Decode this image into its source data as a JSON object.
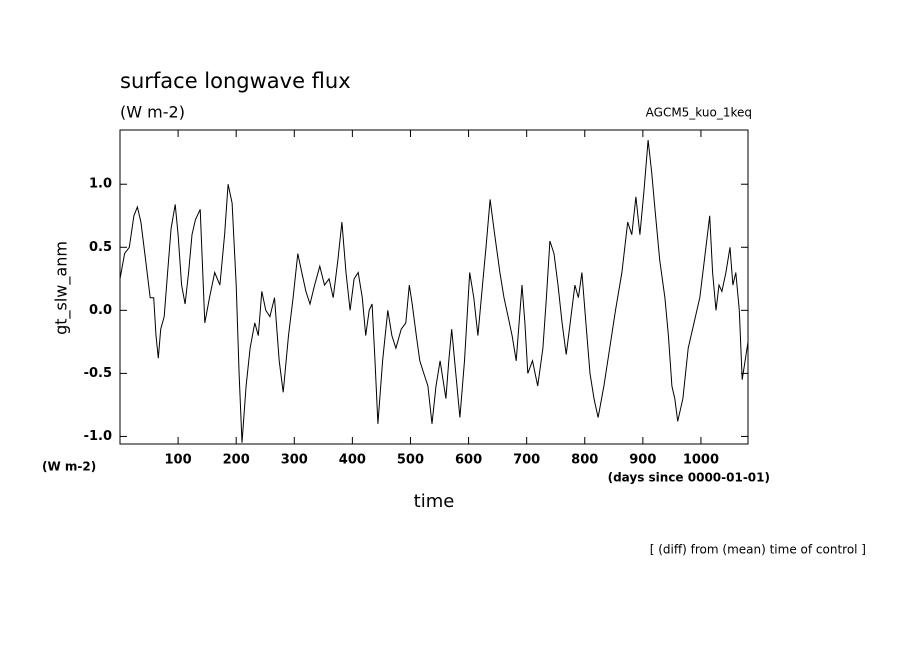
{
  "chart_data": {
    "type": "line",
    "title": "surface longwave flux",
    "subtitle": "(W m-2)",
    "annotation": "AGCM5_kuo_1keq",
    "y_label": "gt_slw_anm",
    "y_units": "(W m-2)",
    "x_units": "(days since 0000-01-01)",
    "x_label": "time",
    "footnote": "[ (diff) from (mean) time of control ]",
    "xlim": [
      0,
      1081
    ],
    "ylim": [
      -1.06,
      1.43
    ],
    "xticks": [
      100,
      200,
      300,
      400,
      500,
      600,
      700,
      800,
      900,
      1000
    ],
    "yticks": [
      {
        "value": -1.0,
        "label": "-1.0"
      },
      -0.5,
      {
        "value": 0.0,
        "label": "0.0"
      },
      0.5,
      {
        "value": 1.0,
        "label": "1.0"
      }
    ],
    "series": [
      {
        "color": "#000000",
        "x": [
          0,
          8,
          16,
          24,
          30,
          36,
          44,
          52,
          58,
          62,
          66,
          70,
          76,
          82,
          88,
          95,
          100,
          106,
          112,
          118,
          124,
          130,
          138,
          146,
          154,
          163,
          172,
          180,
          186,
          193,
          200,
          205,
          210,
          217,
          224,
          232,
          238,
          244,
          251,
          258,
          266,
          274,
          281,
          290,
          298,
          306,
          313,
          320,
          327,
          335,
          344,
          352,
          360,
          367,
          375,
          382,
          389,
          396,
          403,
          410,
          417,
          423,
          429,
          434,
          439,
          444,
          452,
          461,
          468,
          475,
          484,
          492,
          498,
          503,
          510,
          516,
          523,
          530,
          537,
          544,
          551,
          556,
          561,
          566,
          571,
          578,
          585,
          593,
          602,
          609,
          616,
          624,
          630,
          637,
          645,
          654,
          661,
          668,
          675,
          682,
          687,
          692,
          697,
          702,
          710,
          719,
          728,
          734,
          740,
          747,
          754,
          761,
          768,
          775,
          783,
          789,
          795,
          802,
          809,
          816,
          823,
          833,
          843,
          853,
          864,
          869,
          874,
          881,
          888,
          895,
          902,
          909,
          915,
          921,
          929,
          938,
          944,
          950,
          955,
          960,
          969,
          978,
          988,
          998,
          1006,
          1015,
          1020,
          1026,
          1031,
          1036,
          1043,
          1050,
          1055,
          1060,
          1066,
          1071,
          1076,
          1081
        ],
        "values": [
          0.25,
          0.45,
          0.5,
          0.75,
          0.82,
          0.7,
          0.4,
          0.1,
          0.1,
          -0.2,
          -0.38,
          -0.15,
          -0.05,
          0.3,
          0.65,
          0.84,
          0.6,
          0.2,
          0.05,
          0.3,
          0.6,
          0.72,
          0.8,
          -0.1,
          0.1,
          0.3,
          0.2,
          0.6,
          1.0,
          0.85,
          0.2,
          -0.5,
          -1.05,
          -0.6,
          -0.3,
          -0.1,
          -0.2,
          0.15,
          0.0,
          -0.05,
          0.1,
          -0.4,
          -0.65,
          -0.2,
          0.1,
          0.45,
          0.3,
          0.15,
          0.05,
          0.2,
          0.35,
          0.2,
          0.25,
          0.1,
          0.4,
          0.7,
          0.3,
          0.0,
          0.25,
          0.3,
          0.1,
          -0.2,
          0.0,
          0.05,
          -0.4,
          -0.9,
          -0.4,
          0.0,
          -0.2,
          -0.3,
          -0.15,
          -0.1,
          0.2,
          0.05,
          -0.2,
          -0.4,
          -0.5,
          -0.6,
          -0.9,
          -0.6,
          -0.4,
          -0.55,
          -0.7,
          -0.4,
          -0.15,
          -0.5,
          -0.85,
          -0.4,
          0.3,
          0.1,
          -0.2,
          0.2,
          0.5,
          0.88,
          0.6,
          0.3,
          0.1,
          -0.05,
          -0.2,
          -0.4,
          -0.1,
          0.2,
          -0.1,
          -0.5,
          -0.4,
          -0.6,
          -0.3,
          0.1,
          0.55,
          0.45,
          0.2,
          -0.1,
          -0.35,
          -0.1,
          0.2,
          0.1,
          0.3,
          -0.1,
          -0.5,
          -0.7,
          -0.85,
          -0.6,
          -0.3,
          0.0,
          0.3,
          0.5,
          0.7,
          0.6,
          0.9,
          0.6,
          0.95,
          1.35,
          1.1,
          0.8,
          0.4,
          0.1,
          -0.2,
          -0.6,
          -0.7,
          -0.88,
          -0.7,
          -0.3,
          -0.1,
          0.1,
          0.4,
          0.75,
          0.3,
          0.0,
          0.2,
          0.15,
          0.3,
          0.5,
          0.2,
          0.3,
          0.0,
          -0.55,
          -0.4,
          -0.25
        ]
      }
    ]
  }
}
